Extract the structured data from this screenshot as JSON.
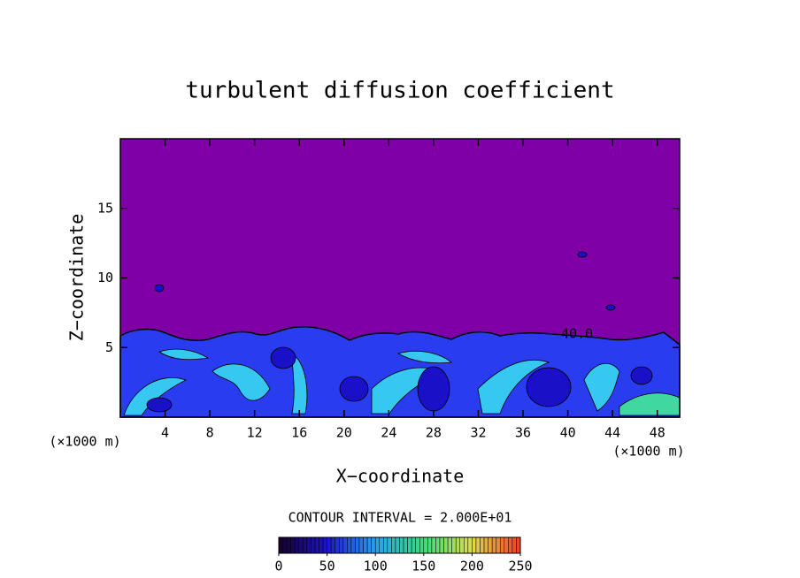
{
  "chart_data": {
    "type": "contour",
    "title": "turbulent diffusion coefficient",
    "xlabel": "X−coordinate",
    "ylabel": "Z−coordinate",
    "x_unit": "(×1000 m)",
    "contour_interval_label": "CONTOUR INTERVAL = 2.000E+01",
    "contour_label": "40.0",
    "xlim": [
      0,
      50
    ],
    "xticks": [
      4,
      8,
      12,
      16,
      20,
      24,
      28,
      32,
      36,
      40,
      44,
      48
    ],
    "ylim": [
      0,
      20
    ],
    "yticks": [
      5,
      10,
      15
    ],
    "colorbar": {
      "lim": [
        0,
        250
      ],
      "ticks": [
        0,
        50,
        100,
        150,
        200,
        250
      ]
    }
  }
}
